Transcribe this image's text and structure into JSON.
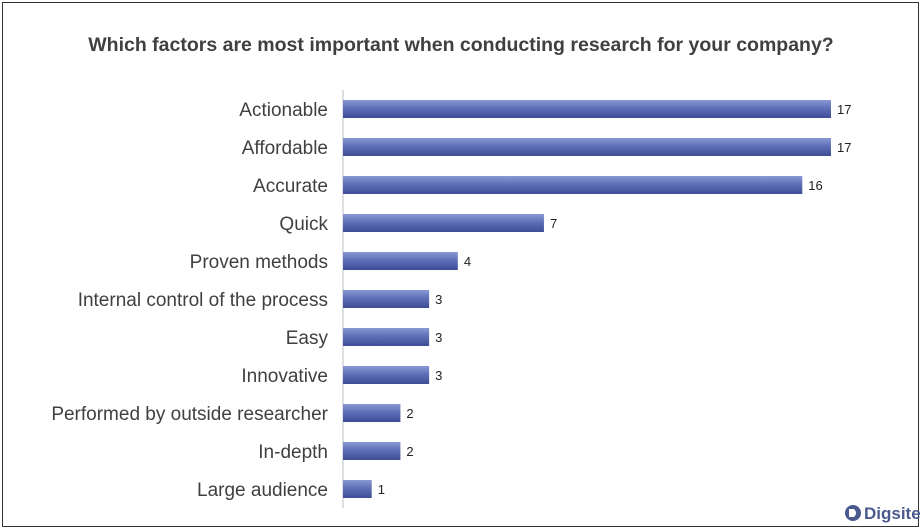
{
  "chart_data": {
    "type": "bar",
    "orientation": "horizontal",
    "title": "Which factors are most important when conducting research for your company?",
    "categories": [
      "Actionable",
      "Affordable",
      "Accurate",
      "Quick",
      "Proven methods",
      "Internal control of the process",
      "Easy",
      "Innovative",
      "Performed by outside researcher",
      "In-depth",
      "Large audience"
    ],
    "values": [
      17,
      17,
      16,
      7,
      4,
      3,
      3,
      3,
      2,
      2,
      1
    ],
    "xlim": [
      0,
      17
    ],
    "grid": false,
    "legend": "none",
    "bar_color": "#5a6bb3"
  },
  "branding": {
    "logo_text": "Digsite",
    "logo_color": "#4a5a8e"
  }
}
